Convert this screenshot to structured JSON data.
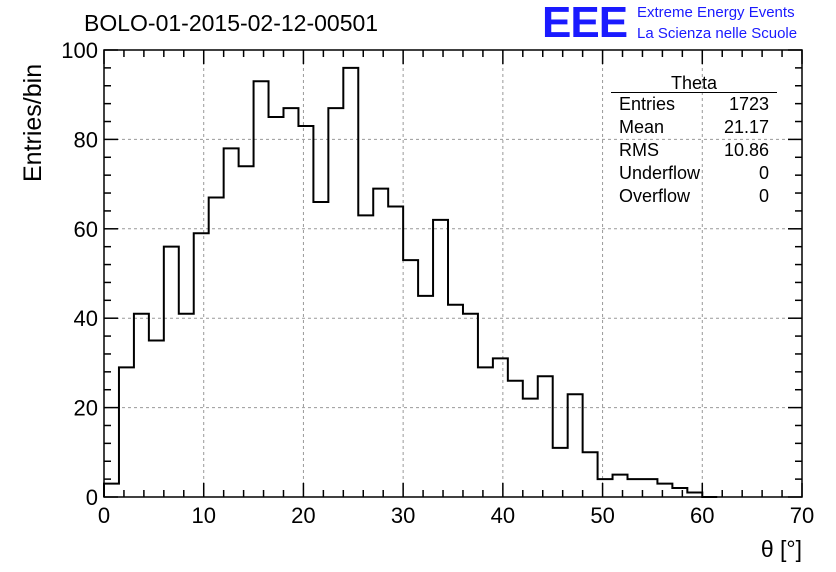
{
  "chart_data": {
    "type": "bar",
    "title": "BOLO-01-2015-02-12-00501",
    "xlabel": "θ [°]",
    "ylabel": "Entries/bin",
    "xlim": [
      0,
      70
    ],
    "ylim": [
      0,
      100
    ],
    "grid": true,
    "bin_width": 1.5,
    "x_ticks": [
      "0",
      "10",
      "20",
      "30",
      "40",
      "50",
      "60",
      "70"
    ],
    "y_ticks": [
      "0",
      "20",
      "40",
      "60",
      "80",
      "100"
    ],
    "values": [
      3,
      29,
      41,
      35,
      56,
      41,
      59,
      67,
      78,
      74,
      93,
      85,
      87,
      83,
      66,
      87,
      96,
      63,
      69,
      65,
      53,
      45,
      62,
      43,
      41,
      29,
      31,
      26,
      22,
      27,
      11,
      23,
      10,
      4,
      5,
      4,
      4,
      3,
      2,
      1,
      0
    ],
    "stats_box": {
      "title": "Theta",
      "position": "top-right",
      "rows": [
        {
          "label": "Entries",
          "value": "1723"
        },
        {
          "label": "Mean",
          "value": "21.17"
        },
        {
          "label": "RMS",
          "value": "10.86"
        },
        {
          "label": "Underflow",
          "value": "0"
        },
        {
          "label": "Overflow",
          "value": "0"
        }
      ]
    }
  },
  "logo": {
    "mark": "EEE",
    "line1": "Extreme Energy Events",
    "line2": "La Scienza nelle Scuole",
    "color": "#1a1aff"
  }
}
